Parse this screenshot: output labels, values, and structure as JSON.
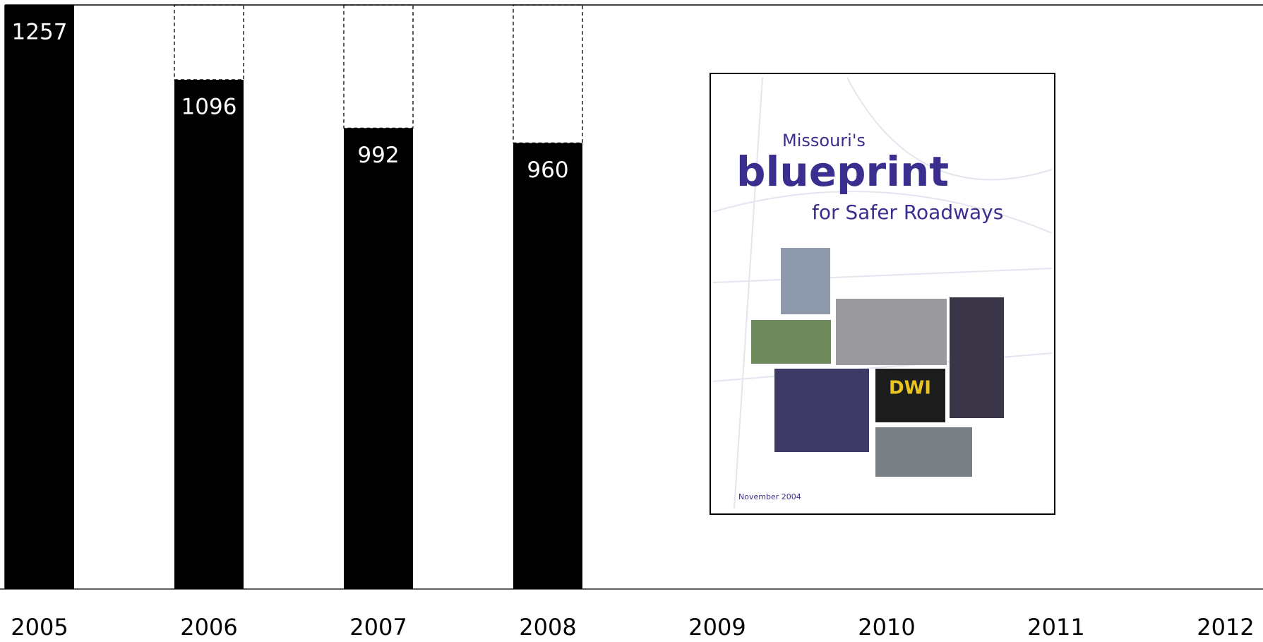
{
  "chart_data": {
    "type": "bar",
    "categories": [
      "2005",
      "2006",
      "2007",
      "2008",
      "2009",
      "2010",
      "2011",
      "2012"
    ],
    "values": [
      1257,
      1096,
      992,
      960,
      null,
      null,
      null,
      null
    ],
    "color": "#000000",
    "ylim": [
      0,
      1257
    ],
    "inset": {
      "pretitle": "Missouri's",
      "title": "blueprint",
      "subtitle": "for Safer Roadways",
      "date": "November 2004"
    }
  }
}
